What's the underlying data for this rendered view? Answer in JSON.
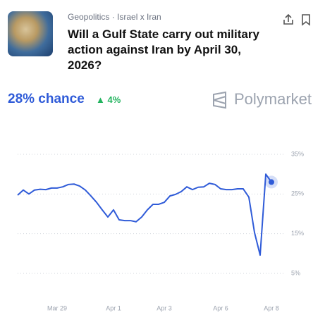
{
  "header": {
    "breadcrumb": "Geopolitics · Israel x Iran",
    "title": "Will a Gulf State carry out military action against Iran by April 30, 2026?",
    "chance": "28% chance",
    "change": "4%",
    "brand": "Polymarket"
  },
  "chart_data": {
    "type": "line",
    "categories": [
      null,
      null,
      null,
      null,
      null,
      null,
      null,
      "Mar 29",
      null,
      null,
      null,
      null,
      null,
      null,
      null,
      null,
      null,
      "Apr 1",
      null,
      null,
      null,
      null,
      null,
      null,
      null,
      null,
      "Apr 3",
      null,
      null,
      null,
      null,
      null,
      null,
      null,
      null,
      null,
      "Apr 6",
      null,
      null,
      null,
      null,
      null,
      null,
      null,
      null,
      "Apr 8"
    ],
    "series": [
      {
        "color": "#2f5bd8",
        "values": [
          24.7,
          26,
          25,
          26,
          26.2,
          26.1,
          26.5,
          26.5,
          26.8,
          27.4,
          27.5,
          27,
          26,
          24.5,
          22.9,
          21,
          19.2,
          21,
          18.5,
          18.3,
          18.3,
          18,
          19.2,
          21,
          22.4,
          22.4,
          22.9,
          24.5,
          24.9,
          25.6,
          26.8,
          26.1,
          26.7,
          26.8,
          27.7,
          27.4,
          26.3,
          26.1,
          26.1,
          26.3,
          26.3,
          24.2,
          15.3,
          9.6,
          30,
          28
        ]
      }
    ],
    "ylim": [
      5,
      35
    ],
    "yticks": [
      {
        "value": 5,
        "label": "5%"
      },
      {
        "value": 15,
        "label": "15%"
      },
      {
        "value": 25,
        "label": "25%"
      },
      {
        "value": 35,
        "label": "35%"
      }
    ],
    "grid": true
  }
}
